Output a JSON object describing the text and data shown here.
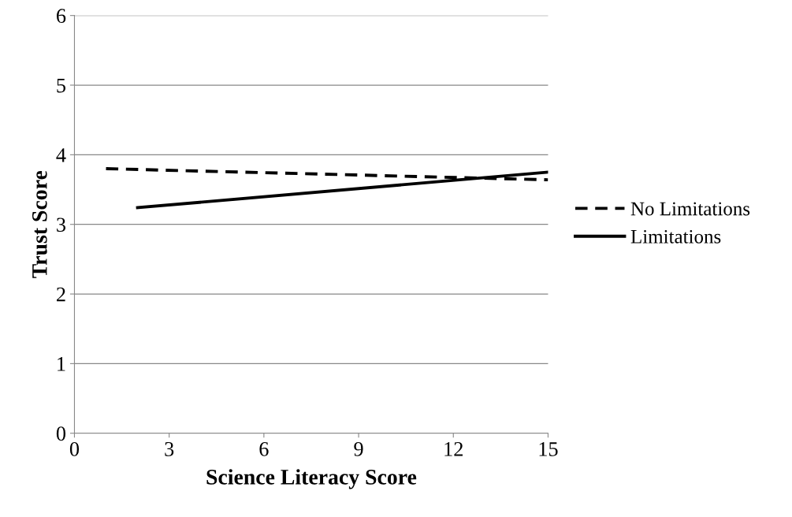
{
  "chart_data": {
    "type": "line",
    "xlabel": "Science Literacy Score",
    "ylabel": "Trust Score",
    "xlim": [
      0,
      15
    ],
    "xticks": [
      0,
      3,
      6,
      9,
      12,
      15
    ],
    "ylim": [
      0,
      6
    ],
    "yticks": [
      0,
      1,
      2,
      3,
      4,
      5,
      6
    ],
    "grid": "y",
    "legend": "right",
    "marker": "none",
    "series": [
      {
        "name": "No Limitations",
        "color": "#000000",
        "line_style": "dashed",
        "x": [
          1,
          15
        ],
        "values": [
          3.8,
          3.64
        ]
      },
      {
        "name": "Limitations",
        "color": "#000000",
        "line_style": "solid",
        "x": [
          2,
          15
        ],
        "values": [
          3.24,
          3.75
        ]
      }
    ]
  }
}
